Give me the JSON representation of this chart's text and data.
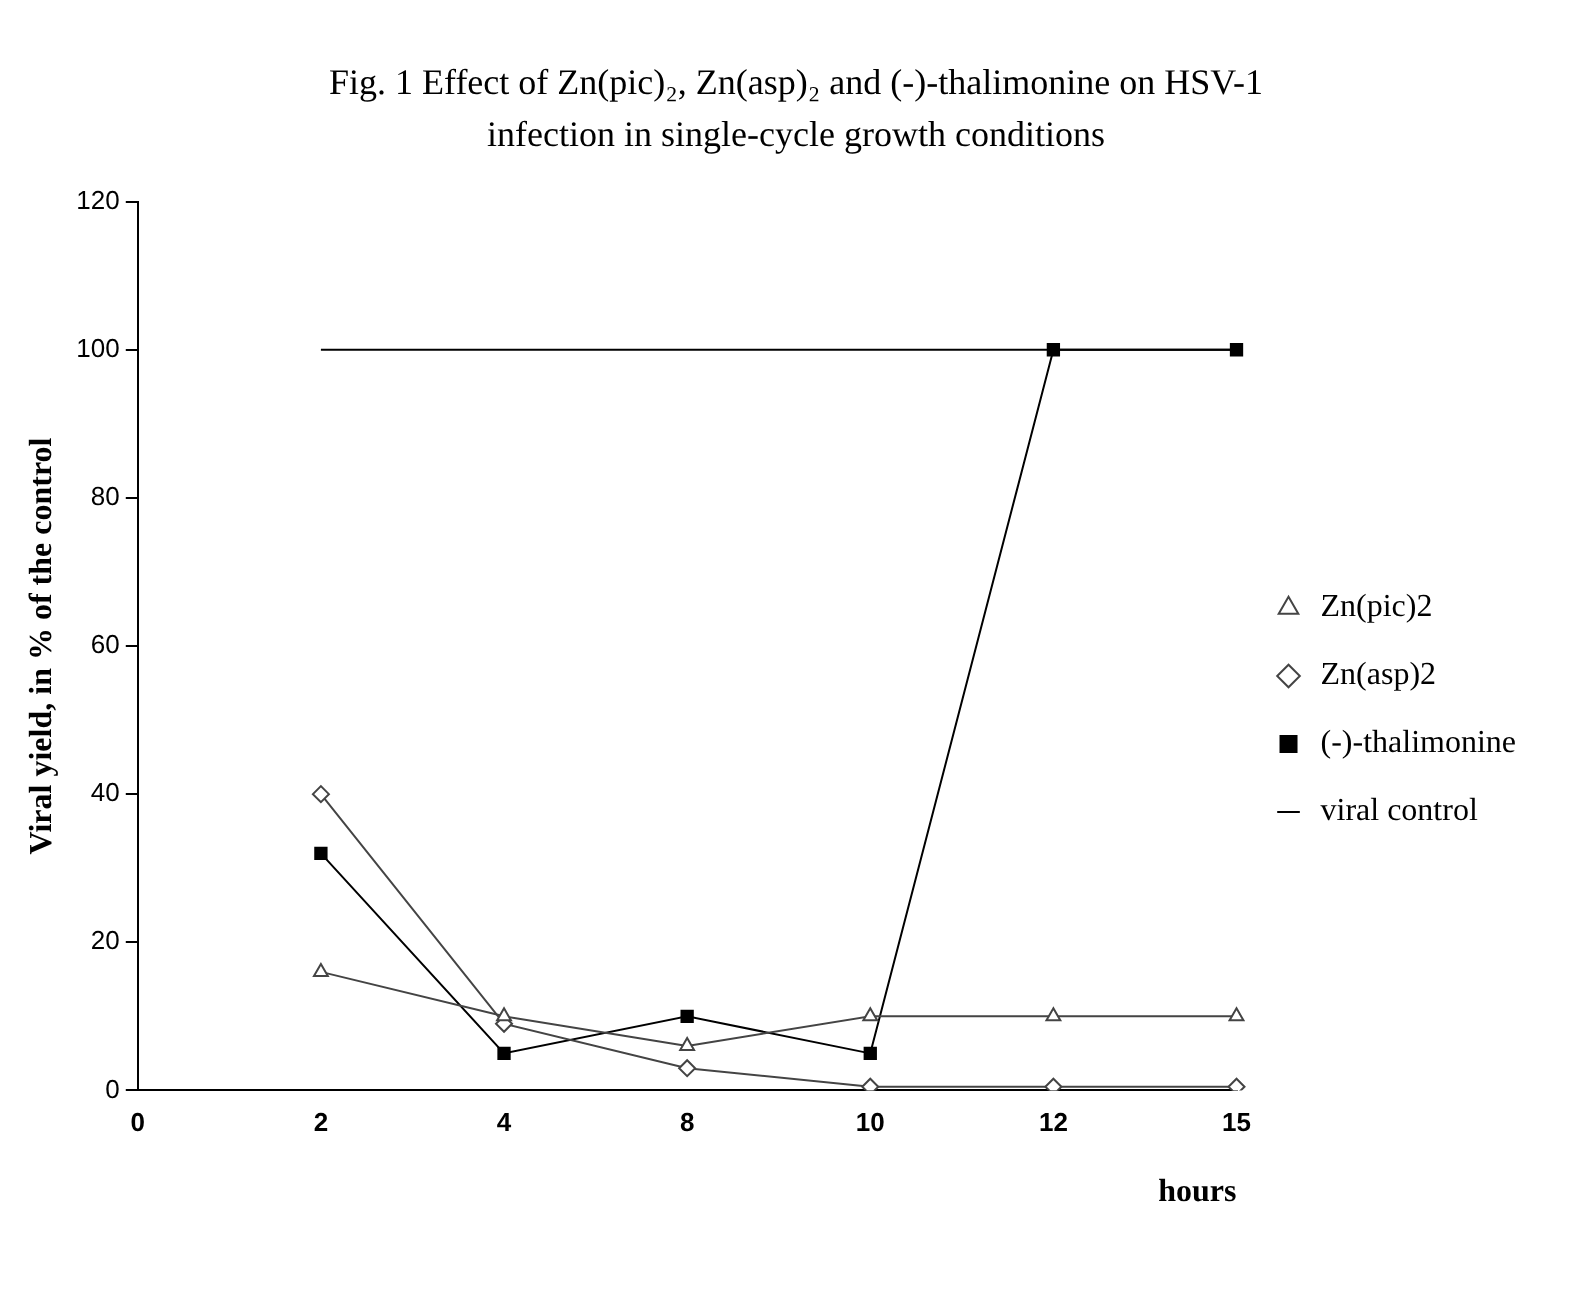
{
  "chart_data": {
    "type": "line",
    "title": "Fig. 1 Effect of Zn(pic)₂, Zn(asp)₂ and (-)-thalimonine on HSV-1 infection in single-cycle growth conditions",
    "xlabel": "hours",
    "ylabel": "Viral yield, in % of the control",
    "categories": [
      "0",
      "2",
      "4",
      "8",
      "10",
      "12",
      "15"
    ],
    "ylim": [
      0,
      120
    ],
    "yticks": [
      0,
      20,
      40,
      60,
      80,
      100,
      120
    ],
    "grid": false,
    "legend": "right",
    "series": [
      {
        "name": "Zn(pic)2",
        "color": "#444444",
        "marker": "triangle",
        "values": [
          null,
          16,
          10,
          6,
          10,
          10,
          10
        ]
      },
      {
        "name": "Zn(asp)2",
        "color": "#444444",
        "marker": "diamond",
        "values": [
          null,
          40,
          9,
          3,
          0.5,
          0.5,
          0.5
        ]
      },
      {
        "name": "(-)-thalimonine",
        "color": "#000000",
        "marker": "square",
        "values": [
          null,
          32,
          5,
          10,
          5,
          100,
          100
        ]
      },
      {
        "name": "viral control",
        "color": "#000000",
        "marker": "none",
        "values": [
          null,
          100,
          100,
          100,
          100,
          100,
          100
        ]
      }
    ]
  }
}
